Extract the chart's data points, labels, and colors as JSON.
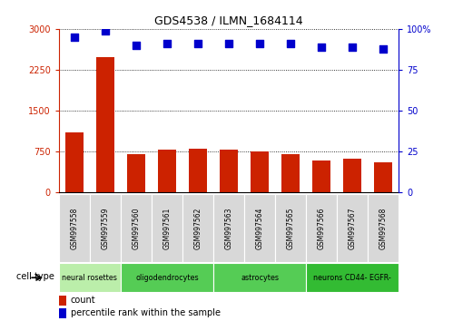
{
  "title": "GDS4538 / ILMN_1684114",
  "samples": [
    "GSM997558",
    "GSM997559",
    "GSM997560",
    "GSM997561",
    "GSM997562",
    "GSM997563",
    "GSM997564",
    "GSM997565",
    "GSM997566",
    "GSM997567",
    "GSM997568"
  ],
  "counts": [
    1100,
    2480,
    700,
    780,
    810,
    790,
    760,
    700,
    580,
    615,
    550
  ],
  "percentile": [
    95,
    99,
    90,
    91,
    91,
    91,
    91,
    91,
    89,
    89,
    88
  ],
  "cell_types": [
    {
      "label": "neural rosettes",
      "start": 0,
      "end": 2,
      "color": "#bbeeaa"
    },
    {
      "label": "oligodendrocytes",
      "start": 2,
      "end": 5,
      "color": "#55cc55"
    },
    {
      "label": "astrocytes",
      "start": 5,
      "end": 8,
      "color": "#55cc55"
    },
    {
      "label": "neurons CD44- EGFR-",
      "start": 8,
      "end": 11,
      "color": "#33bb33"
    }
  ],
  "ylim_left": [
    0,
    3000
  ],
  "ylim_right": [
    0,
    100
  ],
  "yticks_left": [
    0,
    750,
    1500,
    2250,
    3000
  ],
  "yticks_right": [
    0,
    25,
    50,
    75,
    100
  ],
  "bar_color": "#cc2200",
  "dot_color": "#0000cc",
  "background_color": "#ffffff",
  "grid_color": "#000000",
  "legend_count_color": "#cc2200",
  "legend_pct_color": "#0000cc",
  "sample_box_color": "#d8d8d8",
  "cell_type_label": "cell type"
}
